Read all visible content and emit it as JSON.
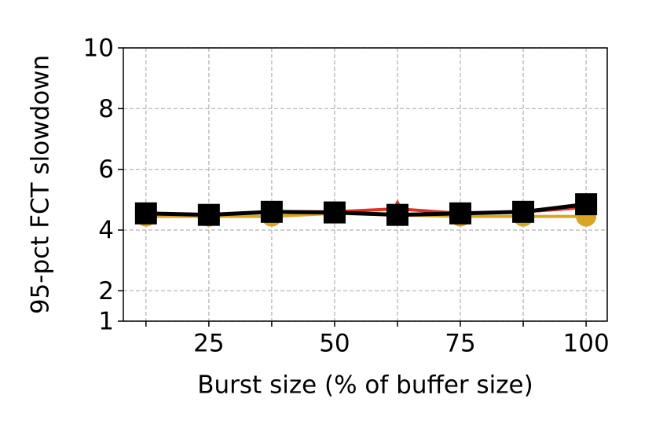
{
  "chart_data": {
    "type": "line",
    "xlabel": "Burst size (% of buffer size)",
    "ylabel": "95-pct FCT slowdown",
    "x": [
      12.5,
      25,
      37.5,
      50,
      62.5,
      75,
      87.5,
      100
    ],
    "xlim": [
      8,
      104.2
    ],
    "xticks": [
      25,
      50,
      75,
      100
    ],
    "xminorticks": [
      12.5,
      37.5,
      62.5,
      87.5
    ],
    "ylim": [
      1,
      10
    ],
    "yticks": [
      1,
      2,
      4,
      6,
      8,
      10
    ],
    "grid": true,
    "series": [
      {
        "color": "#daa520",
        "marker": "circle",
        "values": [
          4.45,
          4.45,
          4.45,
          4.55,
          4.5,
          4.45,
          4.45,
          4.45
        ]
      },
      {
        "color": "#1f1fe0",
        "marker": "none",
        "values": [
          4.55,
          4.5,
          4.6,
          4.58,
          4.5,
          4.55,
          4.6,
          4.75
        ]
      },
      {
        "color": "#e03020",
        "marker": "triangle",
        "values": [
          4.55,
          4.5,
          4.6,
          4.6,
          4.7,
          4.55,
          4.6,
          4.75
        ]
      },
      {
        "color": "#000000",
        "marker": "square",
        "values": [
          4.55,
          4.5,
          4.6,
          4.58,
          4.5,
          4.55,
          4.6,
          4.85
        ]
      }
    ]
  }
}
